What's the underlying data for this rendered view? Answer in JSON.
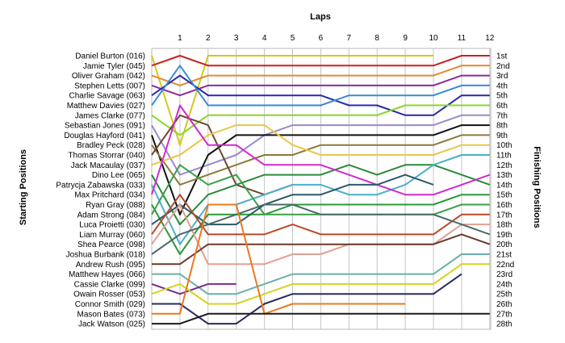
{
  "chart_data": {
    "type": "line",
    "title": "Laps",
    "ylabel_left": "Starting Positions",
    "ylabel_right": "Finishing Positions",
    "laps": [
      1,
      2,
      3,
      4,
      5,
      6,
      7,
      8,
      9,
      10,
      11,
      12
    ],
    "drivers": [
      "Daniel Burton (016)",
      "Jamie Tyler (045)",
      "Oliver Graham (042)",
      "Stephen Letts (007)",
      "Charlie Savage (063)",
      "Matthew Davies (027)",
      "James Clarke (077)",
      "Sebastian Jones (091)",
      "Douglas Hayford (041)",
      "Bradley Peck (028)",
      "Thomas Storrar (040)",
      "Jack Macaulay (037)",
      "Dino Lee (065)",
      "Patrycja Zabawska (033)",
      "Max Pritchard (034)",
      "Ryan Gray (088)",
      "Adam Strong (084)",
      "Luca Proietti (030)",
      "Liam Murray (060)",
      "Shea Pearce (098)",
      "Joshua Burbank (018)",
      "Andrew Rush (095)",
      "Matthew Hayes (066)",
      "Cassie Clarke (099)",
      "Owain Rosser (053)",
      "Connor Smith (029)",
      "Mason Bates (073)",
      "Jack Watson (025)"
    ],
    "finishing_labels": [
      "1st",
      "2nd",
      "3rd",
      "4th",
      "5th",
      "6th",
      "7th",
      "8th",
      "9th",
      "10th",
      "11th",
      "12th",
      "13th",
      "14th",
      "15th",
      "16th",
      "17th",
      "18th",
      "19th",
      "20th",
      "21st",
      "22nd",
      "23rd",
      "24th",
      "25th",
      "26th",
      "27th",
      "28th"
    ],
    "series": [
      {
        "color": "#d4c81e",
        "positions": [
          10,
          1,
          1,
          1,
          1,
          1,
          1,
          1,
          1,
          1
        ]
      },
      {
        "color": "#cc2020",
        "positions": [
          1,
          2,
          2,
          2,
          2,
          2,
          2,
          2,
          2,
          2,
          1,
          1
        ]
      },
      {
        "color": "#e08a30",
        "positions": [
          4,
          3,
          3,
          3,
          3,
          3,
          3,
          3,
          3,
          3,
          2,
          2
        ]
      },
      {
        "color": "#8a2aa0",
        "positions": [
          5,
          4,
          4,
          4,
          4,
          4,
          4,
          4,
          4,
          4,
          3,
          3
        ]
      },
      {
        "color": "#2a2aa8",
        "positions": [
          3,
          5,
          5,
          5,
          5,
          5,
          6,
          6,
          7,
          7,
          5,
          5
        ]
      },
      {
        "color": "#3a8ad6",
        "positions": [
          2,
          6,
          6,
          6,
          6,
          6,
          5,
          5,
          5,
          5,
          4,
          4
        ]
      },
      {
        "color": "#8ad62a",
        "positions": [
          9,
          7,
          7,
          7,
          7,
          7,
          7,
          7,
          6,
          6,
          6,
          6
        ]
      },
      {
        "color": "#9a8ac8",
        "positions": [
          13,
          12,
          11,
          9,
          8,
          8,
          8,
          8,
          8,
          8,
          7,
          7
        ]
      },
      {
        "color": "#111111",
        "positions": [
          17,
          11,
          9,
          9,
          9,
          9,
          9,
          9,
          9,
          9,
          8,
          8
        ]
      },
      {
        "color": "#8a7a3a",
        "positions": [
          14,
          13,
          12,
          11,
          11,
          10,
          10,
          10,
          10,
          10,
          9,
          9
        ]
      },
      {
        "color": "#6a4a30",
        "positions": [
          7,
          8,
          14,
          15,
          14
        ]
      },
      {
        "color": "#e8c848",
        "positions": [
          11,
          9,
          8,
          8,
          10,
          11,
          11,
          11,
          11,
          11,
          10,
          10
        ]
      },
      {
        "color": "#2a8a3a",
        "positions": [
          18,
          15,
          14,
          13,
          13,
          13,
          12,
          13,
          12,
          12,
          13,
          14
        ]
      },
      {
        "color": "#4ab0c8",
        "positions": [
          20,
          16,
          16,
          15,
          14,
          14,
          15,
          15,
          14,
          12,
          11,
          11
        ]
      },
      {
        "color": "#d02ad0",
        "positions": [
          6,
          10,
          10,
          12,
          12,
          12,
          13,
          14,
          15,
          15,
          14,
          13
        ]
      },
      {
        "color": "#2a9a3a",
        "positions": [
          21,
          17,
          17,
          17,
          16,
          16,
          16,
          16,
          16,
          16,
          15,
          15
        ]
      },
      {
        "color": "#3aa048",
        "positions": [
          12,
          14,
          13,
          17,
          17,
          17,
          17,
          17,
          17,
          17,
          16,
          16
        ]
      },
      {
        "color": "#2a5a6a",
        "positions": [
          16,
          18,
          18,
          16,
          15,
          15,
          14,
          14,
          13,
          14
        ]
      },
      {
        "color": "#b84a2a",
        "positions": [
          15,
          19,
          19,
          19,
          18,
          19,
          19,
          19,
          19,
          19,
          17,
          17
        ]
      },
      {
        "color": "#e0a090",
        "positions": [
          16,
          22,
          22,
          22,
          21,
          21,
          20,
          20,
          20,
          20,
          18,
          18
        ]
      },
      {
        "color": "#4a6a6a",
        "positions": [
          19,
          18,
          17,
          16,
          16,
          17,
          17,
          17,
          17,
          17,
          18,
          19
        ]
      },
      {
        "color": "#6a3a2a",
        "positions": [
          22,
          20,
          20,
          20,
          20,
          20,
          20,
          20,
          20,
          20,
          19,
          20
        ]
      },
      {
        "color": "#6ab0a8",
        "positions": [
          23,
          25,
          25,
          24,
          23,
          23,
          23,
          23,
          23,
          23,
          21,
          21
        ]
      },
      {
        "color": "#7a2a8a",
        "positions": [
          25,
          24,
          24
        ]
      },
      {
        "color": "#d4d41e",
        "positions": [
          24,
          26,
          26,
          25,
          24,
          24,
          24,
          24,
          24,
          24,
          22,
          22
        ]
      },
      {
        "color": "#2a2a60",
        "positions": [
          26,
          28,
          28,
          26,
          25,
          25,
          25,
          25,
          25,
          25,
          23
        ]
      },
      {
        "color": "#e87a20",
        "positions": [
          27,
          16,
          16,
          27,
          26,
          26,
          26,
          26,
          26
        ]
      },
      {
        "color": "#1a1a1a",
        "positions": [
          28,
          27,
          27,
          27,
          27,
          27,
          27,
          27,
          27,
          27,
          27,
          27
        ]
      }
    ]
  }
}
